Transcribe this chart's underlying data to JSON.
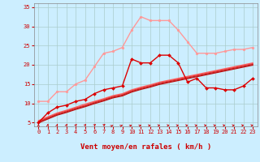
{
  "title": "",
  "xlabel": "Vent moyen/en rafales ( km/h )",
  "bg_color": "#cceeff",
  "grid_color": "#aacccc",
  "xlim": [
    -0.5,
    23.5
  ],
  "ylim": [
    4,
    36
  ],
  "yticks": [
    5,
    10,
    15,
    20,
    25,
    30,
    35
  ],
  "xticks": [
    0,
    1,
    2,
    3,
    4,
    5,
    6,
    7,
    8,
    9,
    10,
    11,
    12,
    13,
    14,
    15,
    16,
    17,
    18,
    19,
    20,
    21,
    22,
    23
  ],
  "series": [
    {
      "x": [
        0,
        1,
        2,
        3,
        4,
        5,
        6,
        7,
        8,
        9,
        10,
        11,
        12,
        13,
        14,
        15,
        16,
        17,
        18,
        19,
        20,
        21,
        22,
        23
      ],
      "y": [
        10.5,
        10.5,
        13.0,
        13.0,
        15.0,
        16.0,
        19.5,
        23.0,
        23.5,
        24.5,
        29.0,
        32.5,
        31.5,
        31.5,
        31.5,
        29.0,
        26.0,
        23.0,
        23.0,
        23.0,
        23.5,
        24.0,
        24.0,
        24.5
      ],
      "color": "#ff9999",
      "lw": 1.0,
      "marker": "o",
      "ms": 2.0
    },
    {
      "x": [
        0,
        1,
        2,
        3,
        4,
        5,
        6,
        7,
        8,
        9,
        10,
        11,
        12,
        13,
        14,
        15,
        16,
        17,
        18,
        19,
        20,
        21,
        22,
        23
      ],
      "y": [
        5.0,
        7.5,
        9.0,
        9.5,
        10.5,
        11.0,
        12.5,
        13.5,
        14.0,
        14.5,
        21.5,
        20.5,
        20.5,
        22.5,
        22.5,
        20.5,
        15.5,
        16.5,
        14.0,
        14.0,
        13.5,
        13.5,
        14.5,
        16.5
      ],
      "color": "#dd0000",
      "lw": 1.0,
      "marker": "D",
      "ms": 2.0
    },
    {
      "x": [
        0,
        1,
        2,
        3,
        4,
        5,
        6,
        7,
        8,
        9,
        10,
        11,
        12,
        13,
        14,
        15,
        16,
        17,
        18,
        19,
        20,
        21,
        22,
        23
      ],
      "y": [
        5.5,
        6.5,
        7.5,
        8.2,
        9.0,
        9.8,
        10.5,
        11.2,
        12.0,
        12.5,
        13.5,
        14.2,
        14.8,
        15.5,
        16.0,
        16.5,
        17.0,
        17.5,
        18.0,
        18.5,
        19.0,
        19.5,
        20.0,
        20.5
      ],
      "color": "#ff6666",
      "lw": 0.9,
      "marker": null,
      "ms": 0
    },
    {
      "x": [
        0,
        1,
        2,
        3,
        4,
        5,
        6,
        7,
        8,
        9,
        10,
        11,
        12,
        13,
        14,
        15,
        16,
        17,
        18,
        19,
        20,
        21,
        22,
        23
      ],
      "y": [
        5.3,
        6.3,
        7.3,
        8.0,
        8.8,
        9.5,
        10.3,
        11.0,
        11.8,
        12.3,
        13.3,
        14.0,
        14.6,
        15.3,
        15.8,
        16.3,
        16.8,
        17.3,
        17.8,
        18.3,
        18.8,
        19.3,
        19.8,
        20.3
      ],
      "color": "#ee4444",
      "lw": 0.9,
      "marker": null,
      "ms": 0
    },
    {
      "x": [
        0,
        1,
        2,
        3,
        4,
        5,
        6,
        7,
        8,
        9,
        10,
        11,
        12,
        13,
        14,
        15,
        16,
        17,
        18,
        19,
        20,
        21,
        22,
        23
      ],
      "y": [
        5.1,
        6.1,
        7.1,
        7.8,
        8.6,
        9.3,
        10.1,
        10.8,
        11.6,
        12.1,
        13.1,
        13.8,
        14.4,
        15.1,
        15.6,
        16.1,
        16.6,
        17.1,
        17.6,
        18.1,
        18.6,
        19.1,
        19.6,
        20.1
      ],
      "color": "#cc2222",
      "lw": 0.9,
      "marker": null,
      "ms": 0
    },
    {
      "x": [
        0,
        1,
        2,
        3,
        4,
        5,
        6,
        7,
        8,
        9,
        10,
        11,
        12,
        13,
        14,
        15,
        16,
        17,
        18,
        19,
        20,
        21,
        22,
        23
      ],
      "y": [
        4.9,
        5.9,
        6.9,
        7.6,
        8.4,
        9.1,
        9.9,
        10.6,
        11.4,
        11.9,
        12.9,
        13.6,
        14.2,
        14.9,
        15.4,
        15.9,
        16.4,
        16.9,
        17.4,
        17.9,
        18.4,
        18.9,
        19.4,
        19.9
      ],
      "color": "#bb1111",
      "lw": 0.9,
      "marker": null,
      "ms": 0
    }
  ],
  "arrow_angles": [
    0,
    5,
    10,
    15,
    20,
    25,
    30,
    35,
    40,
    45,
    50,
    55,
    60,
    65,
    65,
    65,
    65,
    65,
    65,
    65,
    65,
    65,
    65,
    65
  ],
  "tick_fontsize": 5.0,
  "xlabel_fontsize": 6.5,
  "tick_color": "#cc0000",
  "arrow_color": "#cc0000"
}
